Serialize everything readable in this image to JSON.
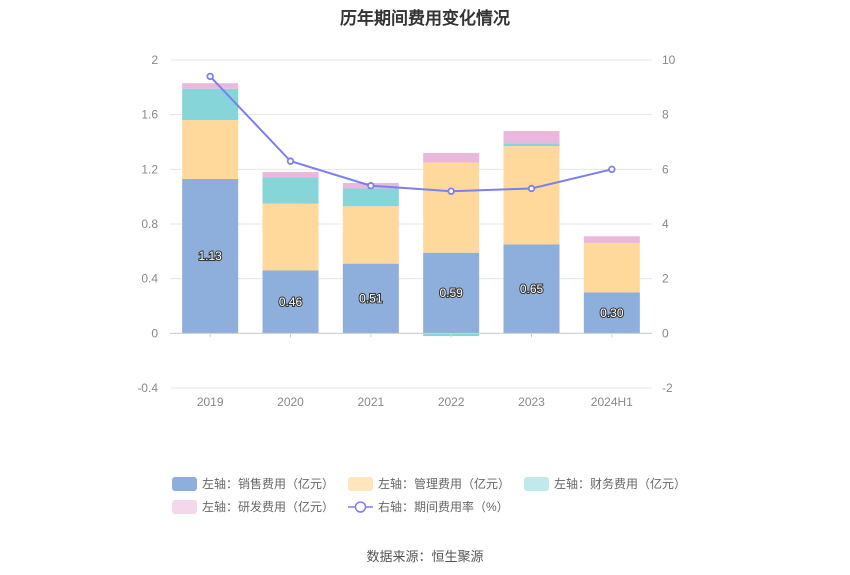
{
  "title": "历年期间费用变化情况",
  "source": "数据来源：恒生聚源",
  "chart_data": {
    "type": "bar",
    "stacked": true,
    "categories": [
      "2019",
      "2020",
      "2021",
      "2022",
      "2023",
      "2024H1"
    ],
    "left_axis": {
      "ylim": [
        -0.4,
        2
      ],
      "ticks": [
        "-0.4",
        "0",
        "0.4",
        "0.8",
        "1.2",
        "1.6",
        "2"
      ]
    },
    "right_axis": {
      "ylim": [
        -2,
        10
      ],
      "ticks": [
        "-2",
        "0",
        "2",
        "4",
        "6",
        "8",
        "10"
      ]
    },
    "grid": true,
    "legend_position": "bottom",
    "series": [
      {
        "name": "左轴：销售费用（亿元）",
        "color": "#8eaedb",
        "values": [
          1.13,
          0.46,
          0.51,
          0.59,
          0.65,
          0.3
        ],
        "labels": [
          "1.13",
          "0.46",
          "0.51",
          "0.59",
          "0.65",
          "0.30"
        ]
      },
      {
        "name": "左轴：管理费用（亿元）",
        "color": "#ffd99b",
        "values": [
          0.43,
          0.49,
          0.42,
          0.66,
          0.72,
          0.36
        ]
      },
      {
        "name": "左轴：财务费用（亿元）",
        "color": "#86d6d9",
        "values": [
          0.23,
          0.19,
          0.13,
          -0.02,
          0.02,
          0.0
        ]
      },
      {
        "name": "左轴：研发费用（亿元）",
        "color": "#eab8dc",
        "values": [
          0.04,
          0.04,
          0.04,
          0.07,
          0.09,
          0.05
        ]
      },
      {
        "name": "右轴：期间费用率（%）",
        "type": "line",
        "axis": "right",
        "color": "#7b7ff0",
        "values": [
          9.4,
          6.3,
          5.4,
          5.2,
          5.3,
          6.0
        ]
      }
    ]
  }
}
